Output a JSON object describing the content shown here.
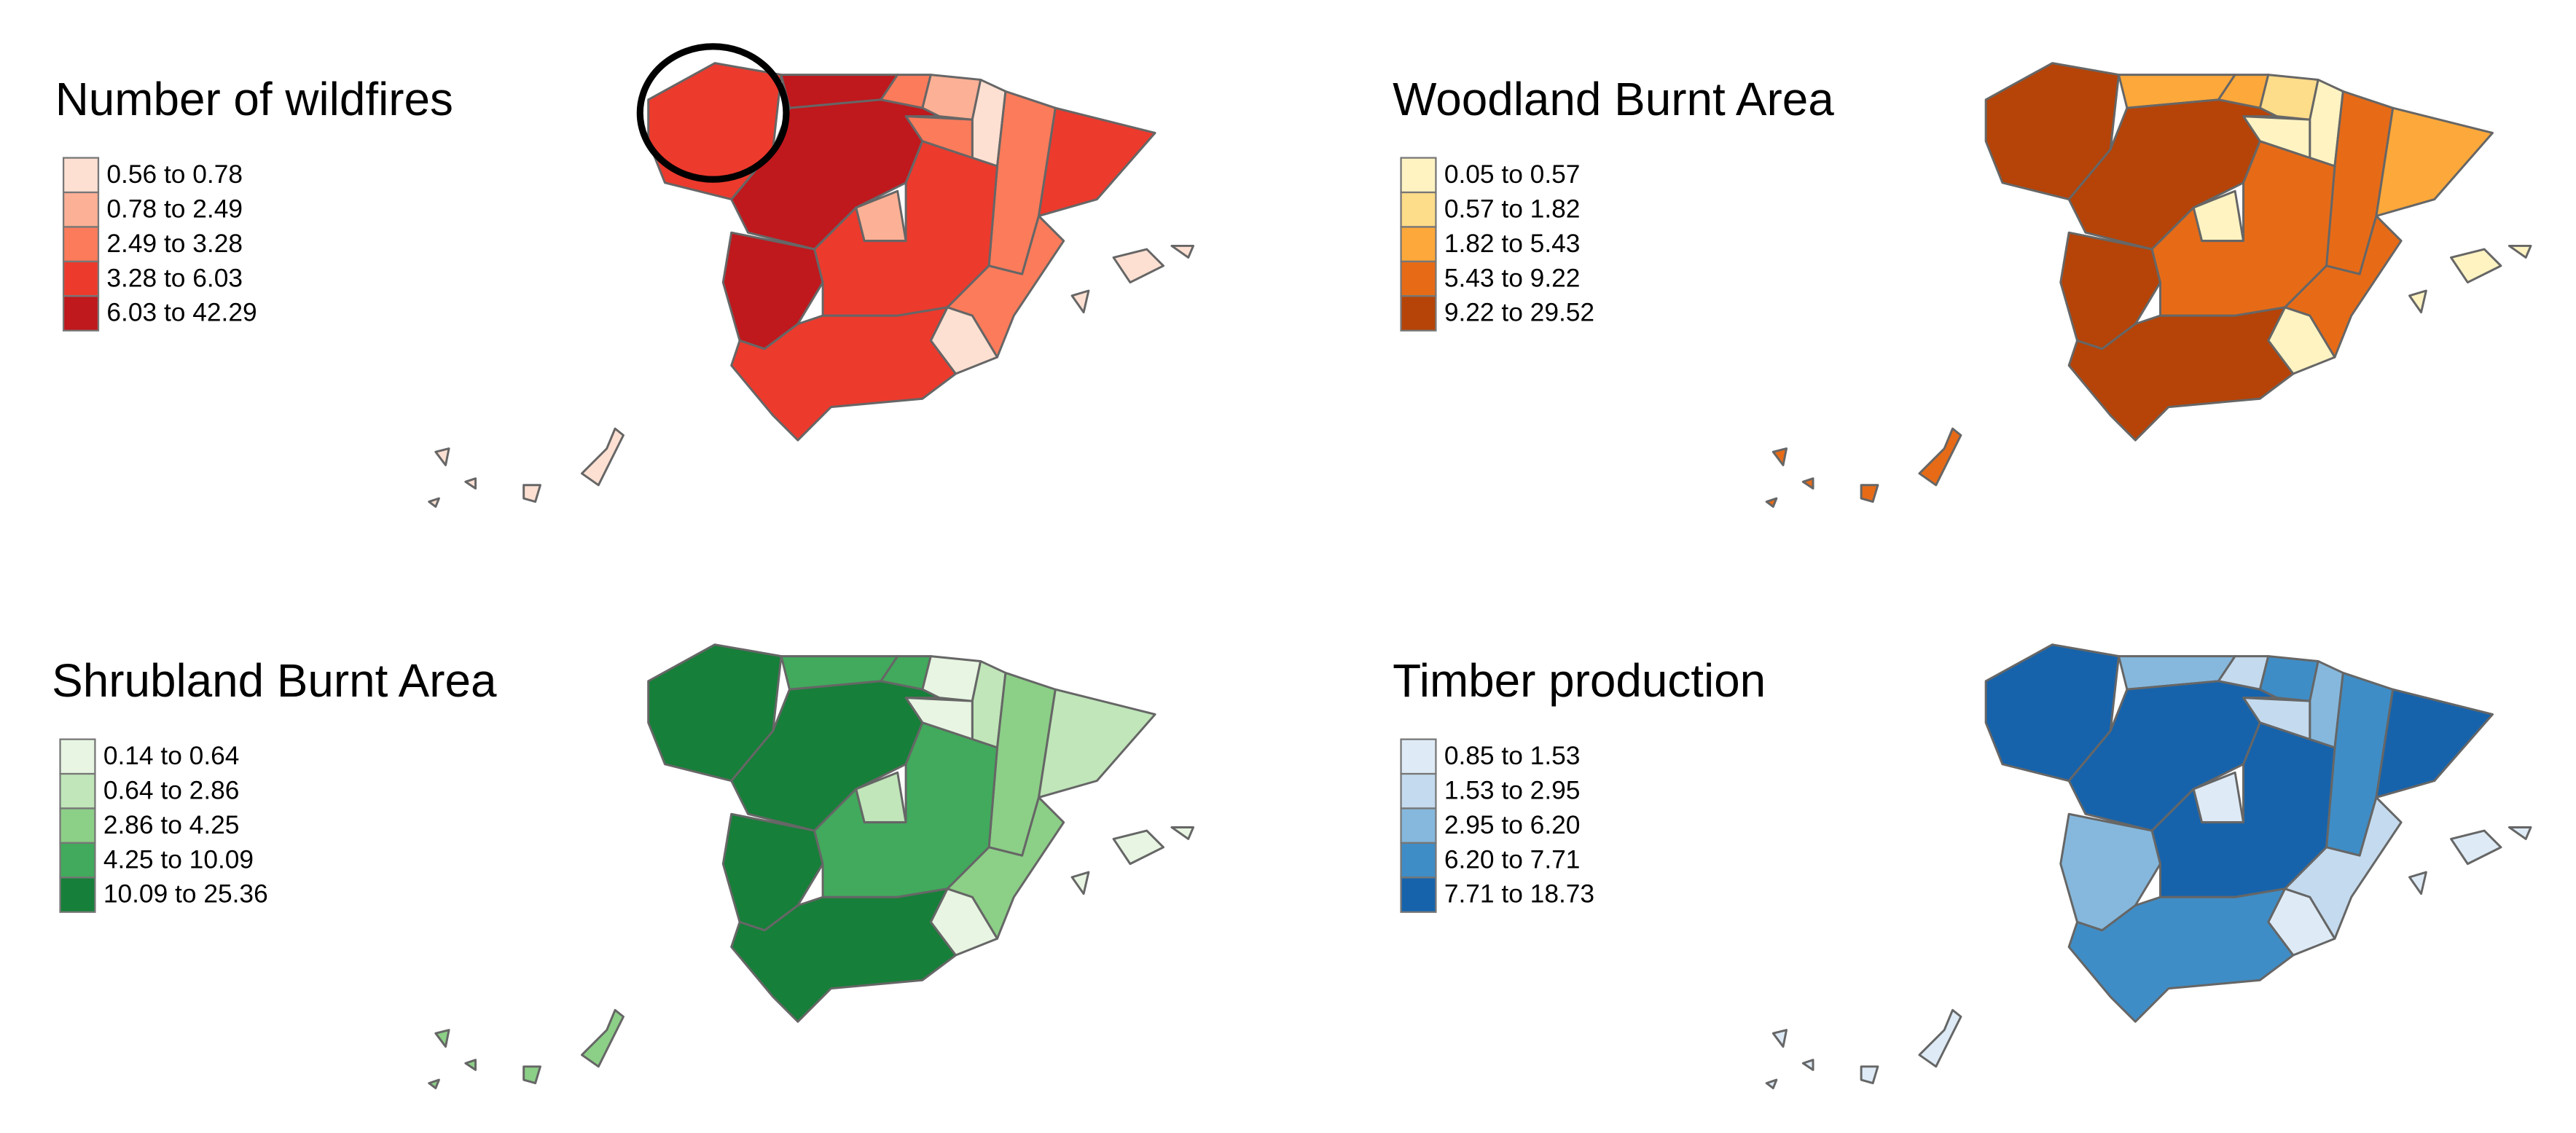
{
  "maps": [
    {
      "title": "Number of wildfires",
      "legend": [
        {
          "label": "0.56 to 0.78",
          "color": "#fee0d2"
        },
        {
          "label": "0.78 to 2.49",
          "color": "#fcb095"
        },
        {
          "label": "2.49 to 3.28",
          "color": "#fb7b5b"
        },
        {
          "label": "3.28 to 6.03",
          "color": "#ec3a2d"
        },
        {
          "label": "6.03 to 42.29",
          "color": "#bf181d"
        }
      ]
    },
    {
      "title": "Woodland Burnt Area",
      "legend": [
        {
          "label": "0.05 to 0.57",
          "color": "#fff3c2"
        },
        {
          "label": "0.57 to 1.82",
          "color": "#fddc8a"
        },
        {
          "label": "1.82 to 5.43",
          "color": "#fda83a"
        },
        {
          "label": "5.43 to 9.22",
          "color": "#e76b17"
        },
        {
          "label": "9.22 to 29.52",
          "color": "#b64307"
        }
      ]
    },
    {
      "title": "Shrubland Burnt Area",
      "legend": [
        {
          "label": "0.14 to 0.64",
          "color": "#e7f5e2"
        },
        {
          "label": "0.64 to 2.86",
          "color": "#c0e6b9"
        },
        {
          "label": "2.86 to 4.25",
          "color": "#8ccf87"
        },
        {
          "label": "4.25 to 10.09",
          "color": "#41aa5c"
        },
        {
          "label": "10.09 to 25.36",
          "color": "#167f39"
        }
      ]
    },
    {
      "title": "Timber production",
      "legend": [
        {
          "label": "0.85 to 1.53",
          "color": "#deebf7"
        },
        {
          "label": "1.53 to 2.95",
          "color": "#c4daee"
        },
        {
          "label": "2.95 to 6.20",
          "color": "#86b8dd"
        },
        {
          "label": "6.20 to 7.71",
          "color": "#3f8dc6"
        },
        {
          "label": "7.71 to 18.73",
          "color": "#1663ac"
        }
      ]
    }
  ]
}
